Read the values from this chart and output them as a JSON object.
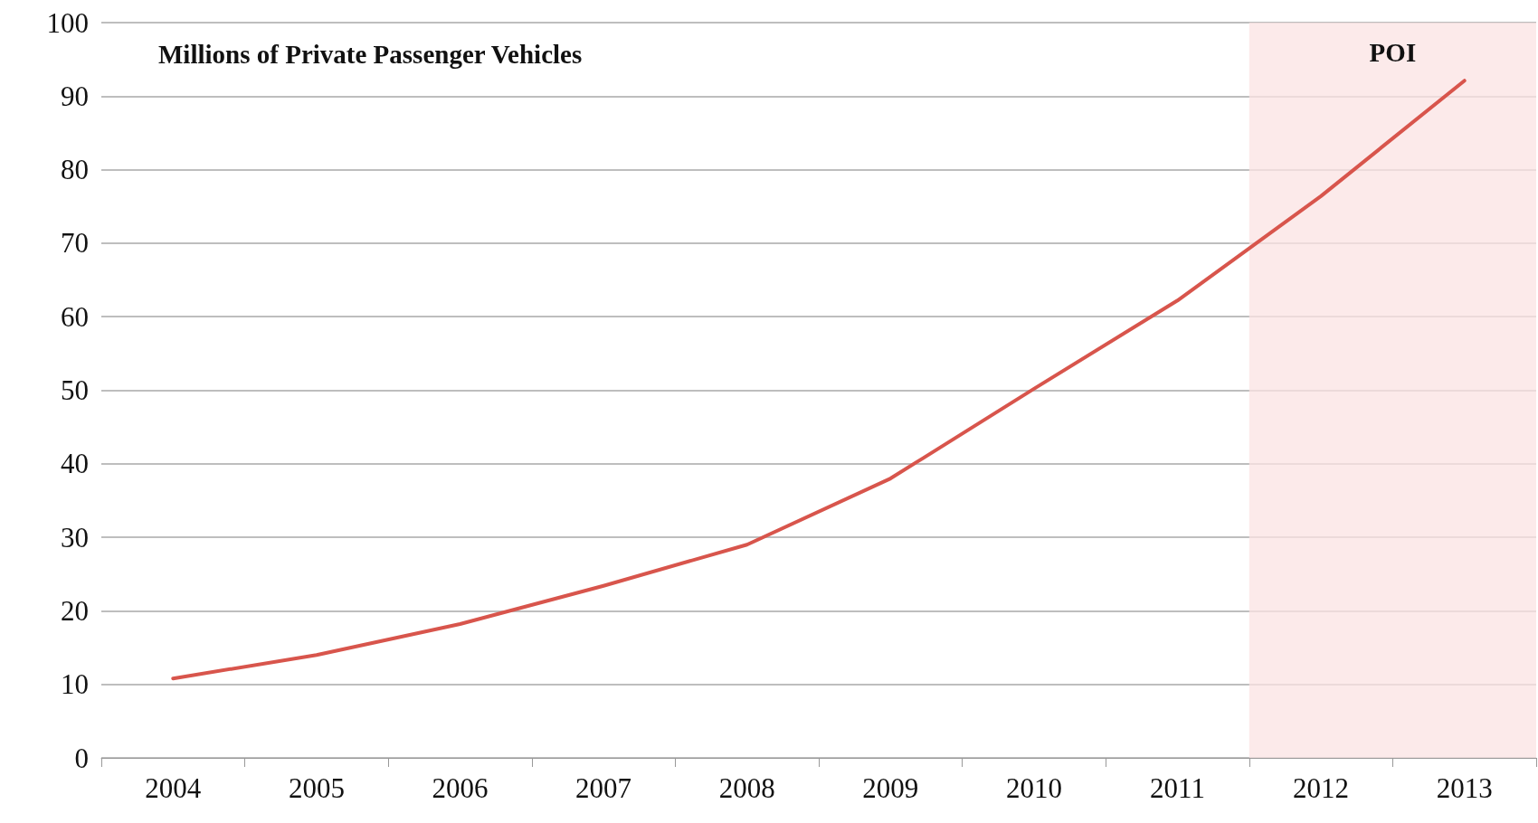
{
  "chart_data": {
    "type": "line",
    "title": "Millions of Private Passenger Vehicles",
    "categories": [
      "2004",
      "2005",
      "2006",
      "2007",
      "2008",
      "2009",
      "2010",
      "2011",
      "2012",
      "2013"
    ],
    "values": [
      10.8,
      14.0,
      18.2,
      23.4,
      29.0,
      38.0,
      50.2,
      62.2,
      76.4,
      92.1
    ],
    "color": "#d8554c",
    "ylim": [
      0,
      100
    ],
    "yticks": [
      0,
      10,
      20,
      30,
      40,
      50,
      60,
      70,
      80,
      90,
      100
    ],
    "grid": "y",
    "marker": "none",
    "line_style": "solid",
    "bands": [
      {
        "axis": "x",
        "from": "2012",
        "to": "2013",
        "label": "POI",
        "color": "#fbe3e3"
      }
    ]
  }
}
